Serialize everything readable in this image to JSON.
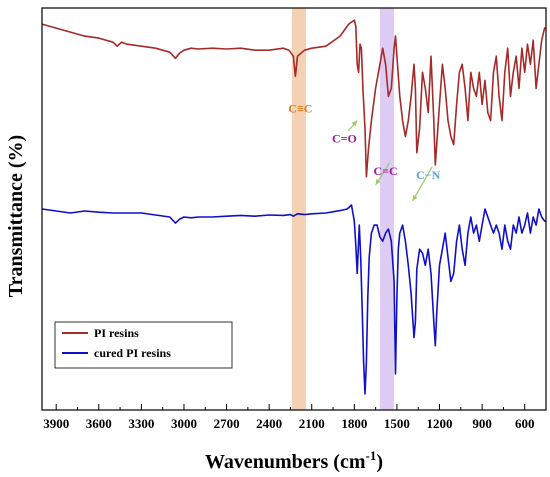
{
  "chart_data": {
    "type": "line",
    "title": "",
    "xlabel": "Wavenumbers (cm",
    "xlabel_sup": "-1",
    "xlabel_close": ")",
    "ylabel": "Transmittance (%)",
    "xlim": [
      4000,
      450
    ],
    "x_reversed": true,
    "ylim": [
      0,
      1
    ],
    "y_ticks_shown": false,
    "grid": false,
    "x_ticks": [
      3900,
      3600,
      3300,
      3000,
      2700,
      2400,
      2100,
      1800,
      1500,
      1200,
      900,
      600
    ],
    "x_tick_labels": [
      "3900",
      "3600",
      "3300",
      "3000",
      "2700",
      "2400",
      "2100",
      "1800",
      "1500",
      "1200",
      "900",
      "600"
    ],
    "legend": {
      "placement": "bottom-left",
      "entries": [
        "PI resins",
        "cured PI resins"
      ]
    },
    "bands": [
      {
        "label": "C≡C",
        "x_from": 2240,
        "x_to": 2140,
        "color": "#f2c9a6"
      },
      {
        "label": "C=C",
        "x_from": 1620,
        "x_to": 1520,
        "color": "#d8c3f2"
      }
    ],
    "annotations": [
      {
        "label": "C≡C",
        "x": 2180,
        "y": 0.74,
        "color": "#e07b1f",
        "target_x": null,
        "target_y": null
      },
      {
        "label": "C=O",
        "x": 1870,
        "y": 0.665,
        "color": "#9b1a9b",
        "target_x": 1780,
        "target_y": 0.72
      },
      {
        "label": "C=C",
        "x": 1580,
        "y": 0.585,
        "color": "#9b1a9b",
        "target_x": 1650,
        "target_y": 0.56
      },
      {
        "label": "C−N",
        "x": 1280,
        "y": 0.575,
        "color": "#5aa0e0",
        "target_x": 1390,
        "target_y": 0.52
      }
    ],
    "series": [
      {
        "name": "PI resins",
        "color": "#a52a2a",
        "x": [
          4000,
          3900,
          3800,
          3700,
          3600,
          3500,
          3470,
          3440,
          3400,
          3300,
          3200,
          3100,
          3060,
          3030,
          3000,
          2950,
          2900,
          2800,
          2700,
          2600,
          2500,
          2400,
          2300,
          2260,
          2230,
          2215,
          2200,
          2150,
          2100,
          2000,
          1900,
          1840,
          1800,
          1790,
          1780,
          1770,
          1760,
          1750,
          1740,
          1725,
          1715,
          1700,
          1680,
          1650,
          1620,
          1600,
          1580,
          1560,
          1540,
          1520,
          1510,
          1500,
          1480,
          1460,
          1440,
          1420,
          1400,
          1380,
          1370,
          1360,
          1340,
          1320,
          1300,
          1280,
          1260,
          1240,
          1230,
          1220,
          1200,
          1180,
          1160,
          1140,
          1120,
          1100,
          1080,
          1060,
          1040,
          1020,
          1000,
          980,
          960,
          940,
          920,
          900,
          880,
          860,
          840,
          820,
          800,
          780,
          760,
          740,
          720,
          700,
          680,
          660,
          640,
          620,
          600,
          580,
          560,
          540,
          520,
          500,
          480,
          460,
          450
        ],
        "y": [
          0.96,
          0.95,
          0.94,
          0.93,
          0.925,
          0.915,
          0.905,
          0.915,
          0.91,
          0.905,
          0.9,
          0.89,
          0.875,
          0.888,
          0.895,
          0.9,
          0.898,
          0.9,
          0.898,
          0.9,
          0.895,
          0.895,
          0.9,
          0.895,
          0.88,
          0.83,
          0.88,
          0.895,
          0.9,
          0.905,
          0.93,
          0.96,
          0.97,
          0.955,
          0.86,
          0.84,
          0.91,
          0.9,
          0.8,
          0.7,
          0.58,
          0.65,
          0.72,
          0.8,
          0.86,
          0.9,
          0.86,
          0.78,
          0.8,
          0.9,
          0.93,
          0.88,
          0.78,
          0.72,
          0.68,
          0.72,
          0.78,
          0.86,
          0.8,
          0.64,
          0.7,
          0.84,
          0.8,
          0.74,
          0.88,
          0.72,
          0.61,
          0.66,
          0.76,
          0.86,
          0.8,
          0.72,
          0.68,
          0.66,
          0.76,
          0.84,
          0.86,
          0.8,
          0.72,
          0.84,
          0.8,
          0.78,
          0.84,
          0.76,
          0.82,
          0.74,
          0.72,
          0.84,
          0.88,
          0.78,
          0.72,
          0.84,
          0.9,
          0.78,
          0.84,
          0.88,
          0.8,
          0.9,
          0.84,
          0.91,
          0.86,
          0.92,
          0.8,
          0.86,
          0.92,
          0.95,
          0.95
        ]
      },
      {
        "name": "cured PI resins",
        "color": "#1010c8",
        "x": [
          4000,
          3900,
          3800,
          3700,
          3600,
          3500,
          3400,
          3300,
          3200,
          3100,
          3060,
          3030,
          3000,
          2950,
          2900,
          2800,
          2700,
          2600,
          2500,
          2400,
          2300,
          2250,
          2230,
          2200,
          2150,
          2100,
          2000,
          1900,
          1850,
          1820,
          1800,
          1790,
          1780,
          1770,
          1765,
          1755,
          1745,
          1735,
          1725,
          1715,
          1705,
          1695,
          1680,
          1660,
          1640,
          1620,
          1600,
          1580,
          1560,
          1540,
          1520,
          1510,
          1500,
          1490,
          1480,
          1460,
          1440,
          1420,
          1400,
          1380,
          1370,
          1360,
          1340,
          1320,
          1300,
          1280,
          1260,
          1240,
          1230,
          1220,
          1200,
          1180,
          1160,
          1140,
          1120,
          1100,
          1080,
          1060,
          1040,
          1020,
          1000,
          980,
          960,
          940,
          920,
          900,
          880,
          860,
          840,
          820,
          800,
          780,
          760,
          740,
          720,
          700,
          680,
          660,
          640,
          620,
          600,
          580,
          560,
          540,
          520,
          500,
          480,
          460,
          450
        ],
        "y": [
          0.5,
          0.495,
          0.49,
          0.495,
          0.492,
          0.49,
          0.49,
          0.49,
          0.485,
          0.48,
          0.465,
          0.475,
          0.48,
          0.478,
          0.48,
          0.48,
          0.482,
          0.484,
          0.482,
          0.485,
          0.484,
          0.486,
          0.482,
          0.488,
          0.486,
          0.488,
          0.49,
          0.496,
          0.5,
          0.51,
          0.47,
          0.41,
          0.34,
          0.42,
          0.46,
          0.38,
          0.26,
          0.12,
          0.04,
          0.12,
          0.28,
          0.38,
          0.44,
          0.46,
          0.46,
          0.43,
          0.42,
          0.44,
          0.45,
          0.42,
          0.32,
          0.09,
          0.28,
          0.4,
          0.44,
          0.46,
          0.42,
          0.36,
          0.29,
          0.18,
          0.22,
          0.35,
          0.4,
          0.39,
          0.36,
          0.4,
          0.34,
          0.22,
          0.16,
          0.24,
          0.36,
          0.4,
          0.44,
          0.38,
          0.32,
          0.34,
          0.42,
          0.46,
          0.4,
          0.36,
          0.44,
          0.48,
          0.44,
          0.46,
          0.42,
          0.46,
          0.5,
          0.48,
          0.46,
          0.44,
          0.46,
          0.44,
          0.4,
          0.46,
          0.42,
          0.4,
          0.46,
          0.44,
          0.48,
          0.44,
          0.46,
          0.49,
          0.44,
          0.48,
          0.46,
          0.5,
          0.48,
          0.47,
          0.47
        ]
      }
    ]
  }
}
